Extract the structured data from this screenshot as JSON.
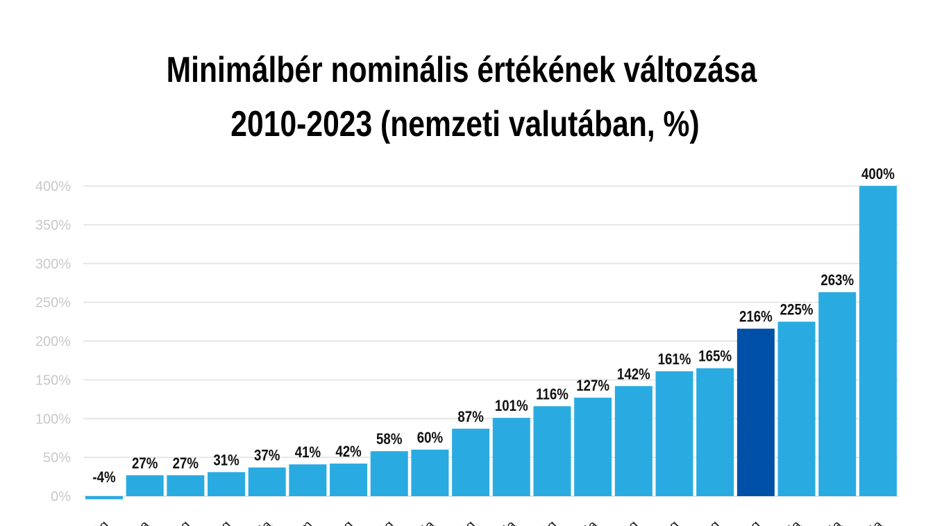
{
  "chart_data": {
    "type": "bar",
    "title": [
      "Minimálbér nominális értékének változása",
      "2010-2023 (nemzeti valutában, %)"
    ],
    "xlabel": "",
    "ylabel": "",
    "ylim": [
      0,
      400
    ],
    "yticks": [
      "0%",
      "50%",
      "100%",
      "150%",
      "200%",
      "250%",
      "300%",
      "350%",
      "400%"
    ],
    "grid": true,
    "categories": [
      "ág",
      "ta",
      "ág",
      "ág",
      "dia",
      "um",
      "urg",
      "ág",
      "lia",
      "ág",
      "nia",
      "ág",
      "lia",
      "ág",
      "ág",
      "ág",
      "ág",
      "ria",
      "nia",
      "nia"
    ],
    "values": [
      -4,
      27,
      27,
      31,
      37,
      41,
      42,
      58,
      60,
      87,
      101,
      116,
      127,
      142,
      161,
      165,
      216,
      225,
      263,
      400
    ],
    "data_labels": [
      "-4%",
      "27%",
      "27%",
      "31%",
      "37%",
      "41%",
      "42%",
      "58%",
      "60%",
      "87%",
      "101%",
      "116%",
      "127%",
      "142%",
      "161%",
      "165%",
      "216%",
      "225%",
      "263%",
      "400%"
    ],
    "highlight_index": 16,
    "colors": {
      "bar": "#29abe2",
      "highlight": "#0050a8",
      "grid": "#e6e6e6"
    }
  }
}
